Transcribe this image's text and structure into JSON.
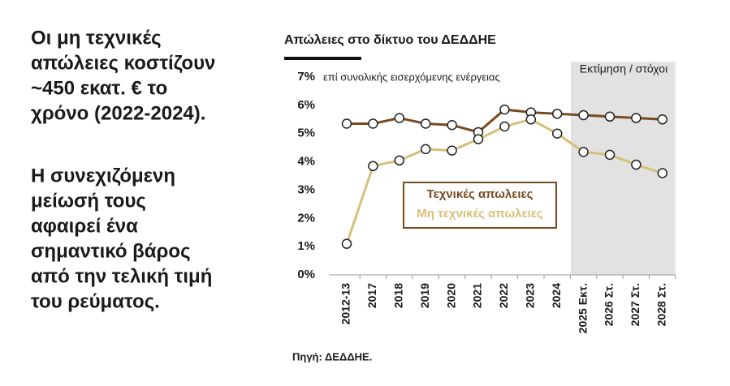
{
  "slide_text": {
    "paragraphs": [
      [
        "Οι μη τεχνικές",
        "απώλειες κοστίζουν",
        "~450 εκατ. € το",
        "χρόνο (2022-2024)."
      ],
      [
        "Η συνεχιζόμενη",
        "μείωσή τους",
        "αφαιρεί ένα",
        "σημαντικό βάρος",
        "από την τελική τιμή",
        "του ρεύματος."
      ]
    ]
  },
  "chart_data": {
    "type": "line",
    "title": "Απώλειες στο δίκτυο του ΔΕΔΔΗΕ",
    "subtitle": "επί συνολικής εισερχόμενης ενέργειας",
    "shaded_region_label": "Εκτίμηση / στόχοι",
    "shade_start_category": "2025 Εκτ.",
    "source": "Πηγή: ΔΕΔΔΗΕ.",
    "categories": [
      "2012-13",
      "2017",
      "2018",
      "2019",
      "2020",
      "2021",
      "2022",
      "2023",
      "2024",
      "2025 Εκτ.",
      "2026 Στ.",
      "2027 Στ.",
      "2028 Στ."
    ],
    "series": [
      {
        "name": "Τεχνικές απωλειες",
        "color": "#7a4a1f",
        "values": [
          5.35,
          5.35,
          5.55,
          5.35,
          5.3,
          5.05,
          5.85,
          5.75,
          5.7,
          5.65,
          5.6,
          5.55,
          5.5
        ]
      },
      {
        "name": "Μη τεχνικές απωλειες",
        "color": "#d8bf78",
        "values": [
          1.1,
          3.85,
          4.05,
          4.45,
          4.4,
          4.8,
          5.25,
          5.5,
          5.0,
          4.35,
          4.25,
          3.9,
          3.6
        ]
      }
    ],
    "ylim": [
      0,
      7
    ],
    "yticks": [
      {
        "value": 0,
        "label": "0%"
      },
      {
        "value": 1,
        "label": "1%"
      },
      {
        "value": 2,
        "label": "2%"
      },
      {
        "value": 3,
        "label": "3%"
      },
      {
        "value": 4,
        "label": "4%"
      },
      {
        "value": 5,
        "label": "5%"
      },
      {
        "value": 6,
        "label": "6%"
      },
      {
        "value": 7,
        "label": "7%"
      }
    ],
    "legend": "center",
    "grid": false
  }
}
